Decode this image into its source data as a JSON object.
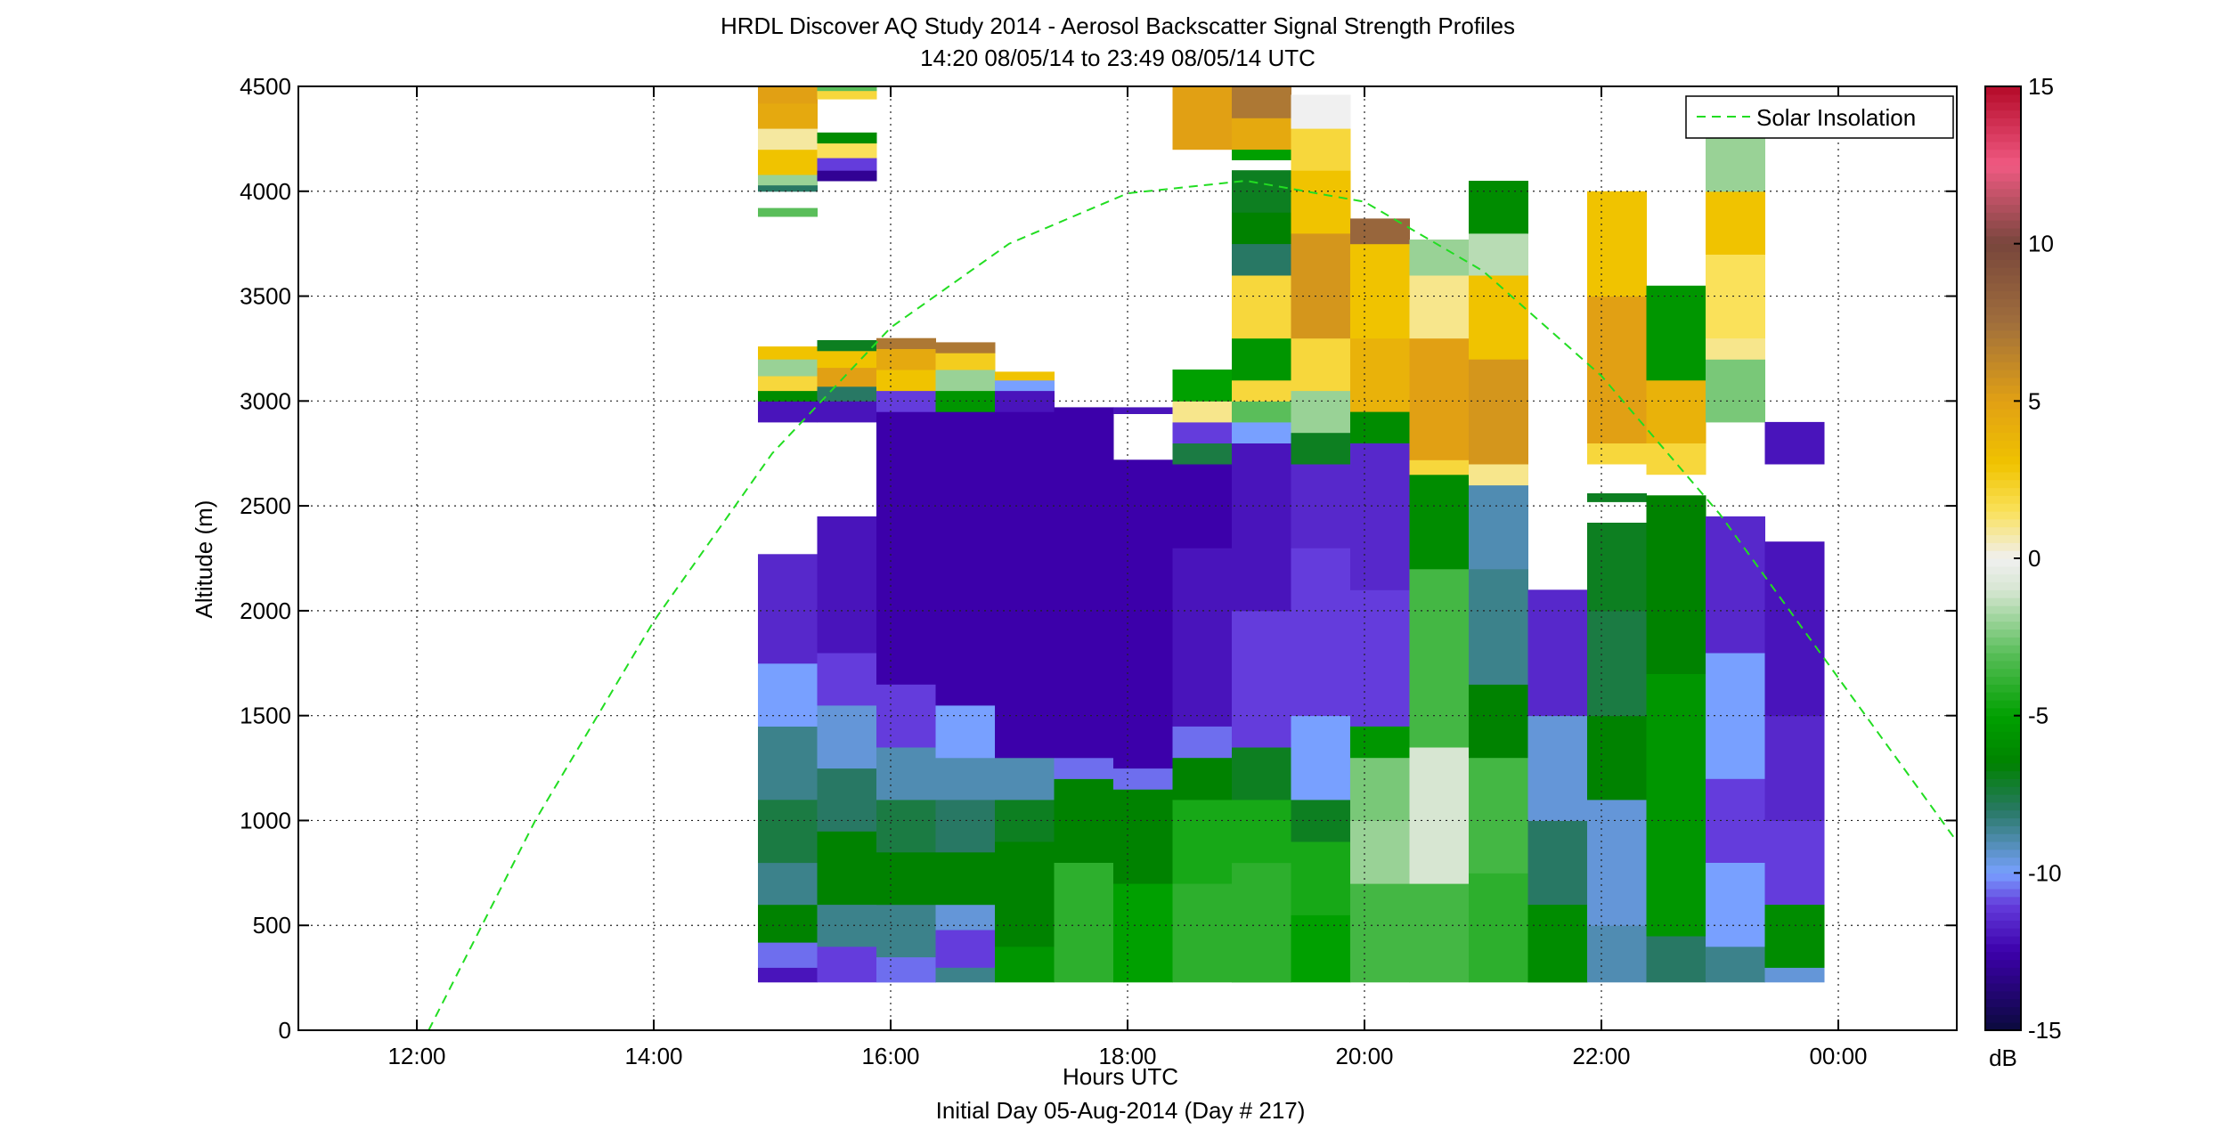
{
  "chart_data": {
    "type": "heatmap",
    "title": "HRDL Discover AQ Study 2014 - Aerosol Backscatter Signal Strength Profiles",
    "subtitle": "14:20 08/05/14 to 23:49 08/05/14  UTC",
    "xlabel": "Hours UTC",
    "xlabel2": "Initial Day 05-Aug-2014 (Day # 217)",
    "ylabel": "Altitude (m)",
    "xlim": [
      11,
      25
    ],
    "ylim": [
      0,
      4500
    ],
    "x_ticks": [
      12,
      14,
      16,
      18,
      20,
      22,
      24
    ],
    "x_tick_labels": [
      "12:00",
      "14:00",
      "16:00",
      "18:00",
      "20:00",
      "22:00",
      "00:00"
    ],
    "y_ticks": [
      0,
      500,
      1000,
      1500,
      2000,
      2500,
      3000,
      3500,
      4000,
      4500
    ],
    "y_tick_labels": [
      "0",
      "500",
      "1000",
      "1500",
      "2000",
      "2500",
      "3000",
      "3500",
      "4000",
      "4500"
    ],
    "grid": true,
    "legend": {
      "position": "top-right",
      "entries": [
        "Solar Insolation"
      ]
    },
    "solar_insolation": {
      "name": "Solar Insolation",
      "color": "#22dd22",
      "style": "dashed",
      "x": [
        12.1,
        13,
        14,
        15,
        16,
        17,
        18,
        19,
        20,
        21,
        22,
        23,
        24,
        25
      ],
      "y": [
        0,
        1000,
        1950,
        2750,
        3350,
        3750,
        3990,
        4050,
        3950,
        3620,
        3120,
        2460,
        1680,
        900
      ]
    },
    "colorbar": {
      "label": "dB",
      "range": [
        -15,
        15
      ],
      "ticks": [
        -15,
        -10,
        -5,
        0,
        5,
        10,
        15
      ],
      "tick_labels": [
        "-15",
        "-10",
        "-5",
        "0",
        "5",
        "10",
        "15"
      ]
    },
    "profiles": [
      {
        "x0": 14.88,
        "x1": 15.38,
        "segments": [
          [
            230,
            300,
            -12
          ],
          [
            300,
            420,
            -10.5
          ],
          [
            420,
            600,
            -6.5
          ],
          [
            600,
            800,
            -8.5
          ],
          [
            800,
            1100,
            -7.5
          ],
          [
            1100,
            1450,
            -8.5
          ],
          [
            1450,
            1750,
            -10
          ],
          [
            1750,
            2270,
            -11.5
          ],
          [
            2900,
            3000,
            -12
          ],
          [
            3000,
            3050,
            -6
          ],
          [
            3050,
            3120,
            2
          ],
          [
            3120,
            3200,
            -2
          ],
          [
            3200,
            3260,
            3
          ],
          [
            3880,
            3920,
            -3
          ],
          [
            4000,
            4030,
            -8
          ],
          [
            4030,
            4080,
            -2
          ],
          [
            4080,
            4200,
            3
          ],
          [
            4200,
            4300,
            0.8
          ],
          [
            4300,
            4420,
            4.5
          ],
          [
            4420,
            4500,
            5
          ]
        ]
      },
      {
        "x0": 15.38,
        "x1": 15.88,
        "segments": [
          [
            230,
            400,
            -11
          ],
          [
            400,
            600,
            -8.5
          ],
          [
            600,
            950,
            -6.5
          ],
          [
            950,
            1250,
            -8
          ],
          [
            1250,
            1550,
            -9.5
          ],
          [
            1550,
            1800,
            -11
          ],
          [
            1800,
            2450,
            -12
          ],
          [
            2900,
            3000,
            -12
          ],
          [
            3000,
            3070,
            -8
          ],
          [
            3070,
            3160,
            5
          ],
          [
            3160,
            3240,
            3
          ],
          [
            3240,
            3290,
            -7
          ],
          [
            4050,
            4100,
            -13
          ],
          [
            4100,
            4160,
            -11
          ],
          [
            4160,
            4230,
            1.5
          ],
          [
            4230,
            4280,
            -6
          ],
          [
            4440,
            4480,
            2
          ],
          [
            4480,
            4500,
            -3
          ]
        ]
      },
      {
        "x0": 15.88,
        "x1": 16.38,
        "segments": [
          [
            230,
            350,
            -10.5
          ],
          [
            350,
            600,
            -8.5
          ],
          [
            600,
            850,
            -6.5
          ],
          [
            850,
            1100,
            -7.5
          ],
          [
            1100,
            1350,
            -9
          ],
          [
            1350,
            1650,
            -11
          ],
          [
            1650,
            2950,
            -12.5
          ],
          [
            2950,
            3050,
            -11
          ],
          [
            3050,
            3150,
            3
          ],
          [
            3150,
            3250,
            4.5
          ],
          [
            3250,
            3300,
            7
          ]
        ]
      },
      {
        "x0": 16.38,
        "x1": 16.88,
        "segments": [
          [
            230,
            300,
            -8.5
          ],
          [
            300,
            480,
            -11
          ],
          [
            480,
            600,
            -9.5
          ],
          [
            600,
            850,
            -6.5
          ],
          [
            850,
            1100,
            -8
          ],
          [
            1100,
            1300,
            -9
          ],
          [
            1300,
            1550,
            -10
          ],
          [
            1550,
            2950,
            -12.5
          ],
          [
            2950,
            3050,
            -5.5
          ],
          [
            3050,
            3150,
            -2
          ],
          [
            3150,
            3230,
            2.5
          ],
          [
            3230,
            3280,
            7
          ]
        ]
      },
      {
        "x0": 16.88,
        "x1": 17.38,
        "segments": [
          [
            230,
            400,
            -5.5
          ],
          [
            400,
            600,
            -6.5
          ],
          [
            600,
            900,
            -6.5
          ],
          [
            900,
            1100,
            -7
          ],
          [
            1100,
            1300,
            -9
          ],
          [
            1300,
            2950,
            -12.5
          ],
          [
            2950,
            3050,
            -12
          ],
          [
            3050,
            3100,
            -10
          ],
          [
            3100,
            3140,
            3
          ]
        ]
      },
      {
        "x0": 17.38,
        "x1": 17.88,
        "segments": [
          [
            230,
            500,
            -4
          ],
          [
            500,
            800,
            -4
          ],
          [
            800,
            1200,
            -6.5
          ],
          [
            1200,
            1300,
            -10.5
          ],
          [
            1300,
            2970,
            -12.5
          ]
        ]
      },
      {
        "x0": 17.88,
        "x1": 18.38,
        "segments": [
          [
            230,
            700,
            -5
          ],
          [
            700,
            1150,
            -6.5
          ],
          [
            1150,
            1250,
            -10.5
          ],
          [
            1250,
            2720,
            -12.5
          ],
          [
            2940,
            2970,
            -12
          ]
        ]
      },
      {
        "x0": 18.38,
        "x1": 18.88,
        "segments": [
          [
            230,
            700,
            -4
          ],
          [
            700,
            1100,
            -4.5
          ],
          [
            1100,
            1300,
            -6.5
          ],
          [
            1300,
            1450,
            -10.5
          ],
          [
            1450,
            2300,
            -12
          ],
          [
            2300,
            2700,
            -12.5
          ],
          [
            2700,
            2800,
            -7.5
          ],
          [
            2800,
            2900,
            -11
          ],
          [
            2900,
            3000,
            1
          ],
          [
            3000,
            3150,
            -5
          ],
          [
            4200,
            4500,
            5
          ]
        ]
      },
      {
        "x0": 18.88,
        "x1": 19.38,
        "segments": [
          [
            230,
            800,
            -4
          ],
          [
            800,
            1100,
            -4.5
          ],
          [
            1100,
            1350,
            -7
          ],
          [
            1350,
            2000,
            -11
          ],
          [
            2000,
            2800,
            -12
          ],
          [
            2800,
            2900,
            -10
          ],
          [
            2900,
            3000,
            -3
          ],
          [
            3000,
            3100,
            2
          ],
          [
            3100,
            3300,
            -5.5
          ],
          [
            3300,
            3600,
            2
          ],
          [
            3600,
            3750,
            -8
          ],
          [
            3750,
            3900,
            -6.5
          ],
          [
            3900,
            4100,
            -7
          ],
          [
            4150,
            4200,
            -5
          ],
          [
            4200,
            4350,
            4.5
          ],
          [
            4350,
            4500,
            7
          ]
        ]
      },
      {
        "x0": 19.38,
        "x1": 19.88,
        "segments": [
          [
            230,
            550,
            -5
          ],
          [
            550,
            900,
            -4.5
          ],
          [
            900,
            1100,
            -7
          ],
          [
            1100,
            1500,
            -10
          ],
          [
            1500,
            2300,
            -11
          ],
          [
            2300,
            2700,
            -11.5
          ],
          [
            2700,
            2850,
            -7
          ],
          [
            2850,
            3050,
            -2
          ],
          [
            3050,
            3300,
            2
          ],
          [
            3300,
            3800,
            5.5
          ],
          [
            3800,
            4100,
            3
          ],
          [
            4100,
            4300,
            2
          ],
          [
            4300,
            4460,
            0
          ]
        ]
      },
      {
        "x0": 19.88,
        "x1": 20.38,
        "segments": [
          [
            230,
            700,
            -3.5
          ],
          [
            700,
            1000,
            -2
          ],
          [
            1000,
            1300,
            -2.5
          ],
          [
            1300,
            1450,
            -5.5
          ],
          [
            1450,
            2100,
            -11
          ],
          [
            2100,
            2800,
            -11.5
          ],
          [
            2800,
            2950,
            -6
          ],
          [
            2950,
            3300,
            4
          ],
          [
            3300,
            3750,
            3
          ],
          [
            3750,
            3870,
            8
          ]
        ]
      },
      {
        "x0": 20.38,
        "x1": 20.88,
        "segments": [
          [
            230,
            700,
            -3.5
          ],
          [
            700,
            1350,
            -1
          ],
          [
            1350,
            2200,
            -3.5
          ],
          [
            2200,
            2650,
            -6
          ],
          [
            2650,
            2720,
            2
          ],
          [
            2720,
            3300,
            5
          ],
          [
            3300,
            3600,
            1
          ],
          [
            3600,
            3770,
            -2
          ]
        ]
      },
      {
        "x0": 20.88,
        "x1": 21.38,
        "segments": [
          [
            230,
            750,
            -4
          ],
          [
            750,
            1300,
            -3.5
          ],
          [
            1300,
            1650,
            -6.5
          ],
          [
            1650,
            2200,
            -8.5
          ],
          [
            2200,
            2600,
            -9
          ],
          [
            2600,
            2700,
            1
          ],
          [
            2700,
            3200,
            5.5
          ],
          [
            3200,
            3600,
            3
          ],
          [
            3600,
            3800,
            -1.5
          ],
          [
            3800,
            4050,
            -6
          ]
        ]
      },
      {
        "x0": 21.38,
        "x1": 21.88,
        "segments": [
          [
            230,
            600,
            -6
          ],
          [
            600,
            1000,
            -8
          ],
          [
            1000,
            1500,
            -9.5
          ],
          [
            1500,
            2100,
            -11.5
          ]
        ]
      },
      {
        "x0": 21.88,
        "x1": 22.38,
        "segments": [
          [
            230,
            500,
            -9
          ],
          [
            500,
            1100,
            -9.5
          ],
          [
            1100,
            1500,
            -6.5
          ],
          [
            1500,
            2000,
            -7.5
          ],
          [
            2000,
            2420,
            -7
          ],
          [
            2520,
            2560,
            -7
          ],
          [
            2700,
            2800,
            2
          ],
          [
            2800,
            3500,
            5
          ],
          [
            3500,
            4000,
            3
          ]
        ]
      },
      {
        "x0": 22.38,
        "x1": 22.88,
        "segments": [
          [
            230,
            450,
            -8
          ],
          [
            450,
            1000,
            -5.5
          ],
          [
            1000,
            1700,
            -5.5
          ],
          [
            1700,
            2550,
            -6.5
          ],
          [
            2650,
            2800,
            2
          ],
          [
            2800,
            3100,
            4
          ],
          [
            3100,
            3550,
            -5.5
          ]
        ]
      },
      {
        "x0": 22.88,
        "x1": 23.38,
        "segments": [
          [
            230,
            400,
            -8.5
          ],
          [
            400,
            800,
            -10
          ],
          [
            800,
            1200,
            -11
          ],
          [
            1200,
            1800,
            -10
          ],
          [
            1800,
            2450,
            -11.5
          ],
          [
            2900,
            3200,
            -2.5
          ],
          [
            3200,
            3300,
            1
          ],
          [
            3300,
            3700,
            1.5
          ],
          [
            3700,
            4000,
            3
          ],
          [
            4000,
            4300,
            -2
          ],
          [
            4300,
            4400,
            0.5
          ]
        ]
      },
      {
        "x0": 23.38,
        "x1": 23.88,
        "segments": [
          [
            230,
            300,
            -9.5
          ],
          [
            300,
            600,
            -6
          ],
          [
            600,
            1000,
            -11
          ],
          [
            1000,
            1500,
            -11.5
          ],
          [
            1500,
            2330,
            -12
          ],
          [
            2700,
            2900,
            -12
          ],
          [
            4260,
            4280,
            2
          ]
        ]
      }
    ]
  }
}
